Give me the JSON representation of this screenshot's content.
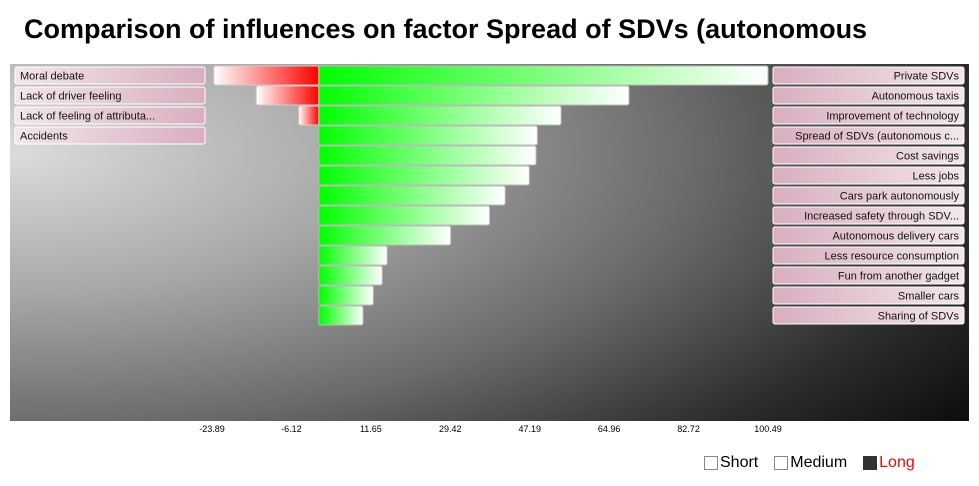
{
  "title": "Comparison of influences on factor Spread of SDVs (autonomous",
  "chart_data": {
    "type": "bar",
    "orientation": "horizontal",
    "title": "Comparison of influences on factor Spread of SDVs (autonomous",
    "x_ticks": [
      "-23.89",
      "-6.12",
      "11.65",
      "29.42",
      "47.19",
      "64.96",
      "82.72",
      "100.49"
    ],
    "xlim": [
      -23.89,
      100.49
    ],
    "negative_series": {
      "color": "#ff0000",
      "categories": [
        "Moral debate",
        "Lack of driver feeling",
        "Lack of feeling of attributa...",
        "Accidents"
      ],
      "values": [
        -23.5,
        -14.0,
        -4.5,
        0
      ]
    },
    "positive_series": {
      "color": "#00ff00",
      "categories": [
        "Private SDVs",
        "Autonomous taxis",
        "Improvement of technology",
        "Spread of SDVs (autonomous c...",
        "Cost savings",
        "Less jobs",
        "Cars park autonomously",
        "Increased safety through SDV...",
        "Autonomous delivery cars",
        "Less resource consumption",
        "Fun from another gadget",
        "Smaller cars",
        "Sharing of SDVs"
      ],
      "values": [
        100.49,
        69.4,
        54.2,
        48.9,
        48.6,
        47.1,
        41.7,
        38.2,
        29.5,
        15.3,
        14.2,
        12.2,
        9.9
      ]
    },
    "grid": false
  },
  "legend": [
    {
      "label": "Short",
      "color": "#ffffff"
    },
    {
      "label": "Medium",
      "color": "#ffffff"
    },
    {
      "label": "Long",
      "color": "#333333",
      "text_color": "#ff0000"
    }
  ]
}
